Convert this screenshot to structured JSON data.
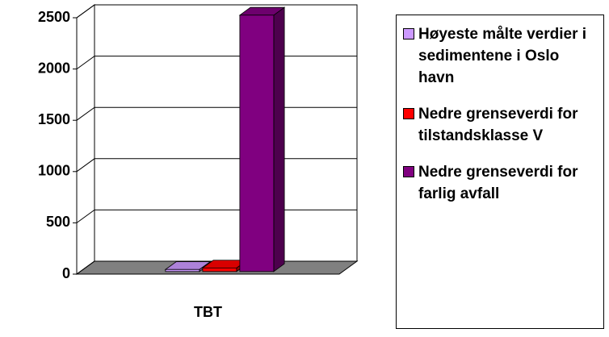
{
  "chart_data": {
    "type": "bar3d",
    "categories": [
      "TBT"
    ],
    "series": [
      {
        "name": "Høyeste målte verdier i sedimentene i Oslo havn",
        "color": "#cc99ff",
        "values": [
          20
        ]
      },
      {
        "name": "Nedre grenseverdi for tilstandsklasse V",
        "color": "#ff0000",
        "values": [
          35
        ]
      },
      {
        "name": "Nedre grenseverdi for farlig avfall",
        "color": "#800080",
        "values": [
          2500
        ]
      }
    ],
    "ylim": [
      0,
      2500
    ],
    "yticks": [
      0,
      500,
      1000,
      1500,
      2000,
      2500
    ],
    "grid": true,
    "legend": "right"
  }
}
